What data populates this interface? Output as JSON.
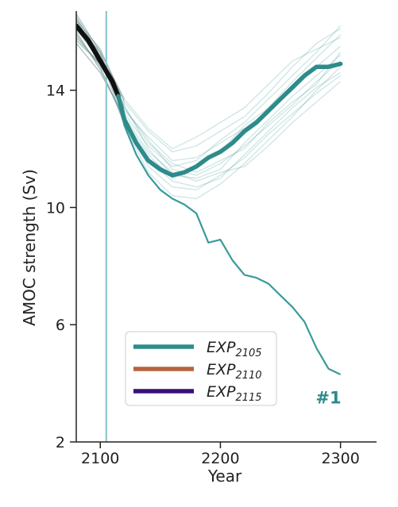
{
  "chart_data": {
    "type": "line",
    "title": "",
    "xlabel": "Year",
    "ylabel": "AMOC strength (Sv)",
    "xlim": [
      2080,
      2330
    ],
    "ylim": [
      2,
      16.7
    ],
    "xticks": [
      "2100",
      "2200",
      "2300"
    ],
    "yticks": [
      "2",
      "6",
      "10",
      "14"
    ],
    "grid": false,
    "vline_x": 2105,
    "legend": {
      "placement": "lower-center",
      "entries": [
        {
          "base": "EXP",
          "sub": "2105",
          "color": "#2e8b8b"
        },
        {
          "base": "EXP",
          "sub": "2110",
          "color": "#b5653c"
        },
        {
          "base": "EXP",
          "sub": "2115",
          "color": "#3a1078"
        }
      ]
    },
    "annotation": {
      "text": "#1",
      "x": 2290,
      "y": 3.5,
      "color": "#2e8b8b"
    },
    "historical_mean": {
      "color": "#111111",
      "x": [
        2080,
        2090,
        2100,
        2110,
        2115
      ],
      "y": [
        16.2,
        15.7,
        15.0,
        14.3,
        13.8
      ]
    },
    "series": [
      {
        "name": "",
        "role": "ensemble-mean",
        "color": "#2e8b8b",
        "x": [
          2115,
          2120,
          2130,
          2140,
          2150,
          2160,
          2170,
          2180,
          2190,
          2200,
          2210,
          2220,
          2230,
          2240,
          2250,
          2260,
          2270,
          2280,
          2290,
          2300
        ],
        "y": [
          13.8,
          13.0,
          12.2,
          11.6,
          11.3,
          11.1,
          11.2,
          11.4,
          11.7,
          11.9,
          12.2,
          12.6,
          12.9,
          13.3,
          13.7,
          14.1,
          14.5,
          14.8,
          14.8,
          14.9
        ]
      },
      {
        "name": "",
        "role": "member-1",
        "color": "#3a9a9a",
        "x": [
          2115,
          2120,
          2130,
          2140,
          2150,
          2160,
          2170,
          2180,
          2190,
          2200,
          2210,
          2220,
          2230,
          2240,
          2250,
          2260,
          2270,
          2280,
          2290,
          2300
        ],
        "y": [
          13.8,
          12.8,
          11.8,
          11.1,
          10.6,
          10.3,
          10.1,
          9.8,
          8.8,
          8.9,
          8.2,
          7.7,
          7.6,
          7.4,
          7.0,
          6.6,
          6.1,
          5.2,
          4.5,
          4.3
        ]
      }
    ],
    "members": [
      {
        "x": [
          2080,
          2100,
          2120,
          2140,
          2160,
          2180,
          2200,
          2220,
          2240,
          2260,
          2280,
          2300
        ],
        "y": [
          16.3,
          15.1,
          13.4,
          12.2,
          11.5,
          11.2,
          11.6,
          12.0,
          12.9,
          13.6,
          14.2,
          15.3
        ]
      },
      {
        "x": [
          2080,
          2100,
          2120,
          2140,
          2160,
          2180,
          2200,
          2220,
          2240,
          2260,
          2280,
          2300
        ],
        "y": [
          16.6,
          15.3,
          13.0,
          11.8,
          11.0,
          11.4,
          11.9,
          12.8,
          13.4,
          14.3,
          15.1,
          15.9
        ]
      },
      {
        "x": [
          2080,
          2100,
          2120,
          2140,
          2160,
          2180,
          2200,
          2220,
          2240,
          2260,
          2280,
          2300
        ],
        "y": [
          15.9,
          14.8,
          12.9,
          11.4,
          10.7,
          10.6,
          11.1,
          11.7,
          12.5,
          13.2,
          13.9,
          14.5
        ]
      },
      {
        "x": [
          2080,
          2100,
          2120,
          2140,
          2160,
          2180,
          2200,
          2220,
          2240,
          2260,
          2280,
          2300
        ],
        "y": [
          16.4,
          15.4,
          13.6,
          12.6,
          11.9,
          12.1,
          12.6,
          13.1,
          13.9,
          14.8,
          15.6,
          16.1
        ]
      },
      {
        "x": [
          2080,
          2100,
          2120,
          2140,
          2160,
          2180,
          2200,
          2220,
          2240,
          2260,
          2280,
          2300
        ],
        "y": [
          15.6,
          14.6,
          13.1,
          11.9,
          11.2,
          10.9,
          11.2,
          11.4,
          12.1,
          12.9,
          13.6,
          14.3
        ]
      },
      {
        "x": [
          2080,
          2100,
          2120,
          2140,
          2160,
          2180,
          2200,
          2220,
          2240,
          2260,
          2280,
          2300
        ],
        "y": [
          16.1,
          15.0,
          13.3,
          12.4,
          11.6,
          11.7,
          12.2,
          12.7,
          13.3,
          14.0,
          14.8,
          15.5
        ]
      },
      {
        "x": [
          2080,
          2100,
          2120,
          2140,
          2160,
          2180,
          2200,
          2220,
          2240,
          2260,
          2280,
          2300
        ],
        "y": [
          16.5,
          15.2,
          12.8,
          11.2,
          10.4,
          10.3,
          10.8,
          11.5,
          12.3,
          13.1,
          14.0,
          14.8
        ]
      },
      {
        "x": [
          2080,
          2100,
          2120,
          2140,
          2160,
          2180,
          2200,
          2220,
          2240,
          2260,
          2280,
          2300
        ],
        "y": [
          15.8,
          14.9,
          13.5,
          12.0,
          11.1,
          11.0,
          11.3,
          12.2,
          13.0,
          13.8,
          14.5,
          15.2
        ]
      },
      {
        "x": [
          2080,
          2100,
          2120,
          2140,
          2160,
          2180,
          2200,
          2220,
          2240,
          2260,
          2280,
          2300
        ],
        "y": [
          16.2,
          15.3,
          13.7,
          12.7,
          12.0,
          12.4,
          12.9,
          13.4,
          14.2,
          15.0,
          15.4,
          15.8
        ]
      },
      {
        "x": [
          2080,
          2100,
          2120,
          2140,
          2160,
          2180,
          2200,
          2220,
          2240,
          2260,
          2280,
          2300
        ],
        "y": [
          16.0,
          14.7,
          13.0,
          11.6,
          10.9,
          10.7,
          11.0,
          11.8,
          12.6,
          13.4,
          14.1,
          14.6
        ]
      },
      {
        "x": [
          2080,
          2100,
          2120,
          2140,
          2160,
          2180,
          2200,
          2220,
          2240,
          2260,
          2280,
          2300
        ],
        "y": [
          16.4,
          15.1,
          13.2,
          12.1,
          11.4,
          11.6,
          12.3,
          12.9,
          13.7,
          14.5,
          15.3,
          16.2
        ]
      },
      {
        "x": [
          2080,
          2100,
          2120,
          2140,
          2160,
          2180,
          2200,
          2220,
          2240,
          2260,
          2280,
          2300
        ],
        "y": [
          15.7,
          14.9,
          13.4,
          12.3,
          11.3,
          11.1,
          11.5,
          12.1,
          12.8,
          13.5,
          14.3,
          15.0
        ]
      }
    ]
  }
}
